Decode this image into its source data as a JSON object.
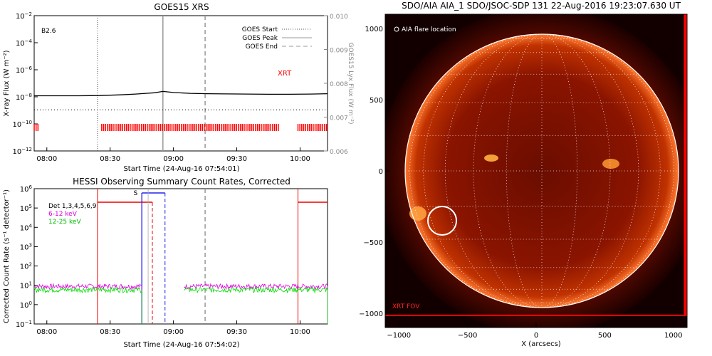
{
  "chart_data": [
    {
      "type": "line",
      "title": "GOES15 XRS",
      "xlabel": "Start Time (24-Aug-16 07:54:01)",
      "ylabel_left": "X-ray Flux (W m⁻²)",
      "ylabel_right": "GOES15 Lyx Flux (W m⁻²)",
      "x_ticks": [
        "08:00",
        "08:30",
        "09:00",
        "09:30",
        "10:00"
      ],
      "x_tick_minutes": [
        480,
        510,
        540,
        570,
        600
      ],
      "xlim_minutes": [
        474,
        613
      ],
      "y_scale": "log",
      "ylim": [
        1e-12,
        0.01
      ],
      "y_tick_exponents": [
        -12,
        -10,
        -8,
        -6,
        -4,
        -2
      ],
      "y2lim": [
        0.006,
        0.01
      ],
      "y2_ticks": [
        "0.006",
        "0.007",
        "0.008",
        "0.009",
        "0.010"
      ],
      "flare_class_label": "B2.6",
      "annotation": "XRT",
      "legend": [
        {
          "label": "GOES Start",
          "style": "dotted"
        },
        {
          "label": "GOES Peak",
          "style": "solid"
        },
        {
          "label": "GOES End",
          "style": "dashed"
        }
      ],
      "event_lines_minutes": {
        "start": 504,
        "peak": 535,
        "end": 555
      },
      "series": [
        {
          "color": "#000000",
          "x": [
            474,
            485,
            495,
            505,
            515,
            522,
            527,
            531,
            535,
            540,
            548,
            556,
            565,
            575,
            585,
            595,
            605,
            613
          ],
          "y": [
            1.2e-08,
            1.2e-08,
            1.2e-08,
            1.25e-08,
            1.4e-08,
            1.6e-08,
            1.8e-08,
            2e-08,
            2.5e-08,
            2.1e-08,
            1.8e-08,
            1.7e-08,
            1.65e-08,
            1.6e-08,
            1.55e-08,
            1.55e-08,
            1.6e-08,
            1.7e-08
          ]
        },
        {
          "color": "#000000",
          "x": [
            474,
            613
          ],
          "y": [
            1.1e-09,
            1.1e-09
          ]
        }
      ],
      "xrt_coverage_minutes": [
        [
          474,
          476
        ],
        [
          506,
          590
        ],
        [
          599,
          613
        ]
      ],
      "xrt_color": "#ff0000"
    },
    {
      "type": "line",
      "title": "HESSI Observing Summary Count Rates, Corrected",
      "xlabel": "Start Time (24-Aug-16 07:54:02)",
      "ylabel": "Corrected Count Rate (s⁻¹ detector⁻¹)",
      "x_ticks": [
        "08:00",
        "08:30",
        "09:00",
        "09:30",
        "10:00"
      ],
      "x_tick_minutes": [
        480,
        510,
        540,
        570,
        600
      ],
      "xlim_minutes": [
        474,
        613
      ],
      "y_scale": "log",
      "ylim": [
        0.1,
        1000000.0
      ],
      "y_tick_exponents": [
        -1,
        0,
        1,
        2,
        3,
        4,
        5,
        6
      ],
      "legend": [
        {
          "label": "Det 1,3,4,5,6,9",
          "color": "#000000"
        },
        {
          "label": "6-12 keV",
          "color": "#dd00dd"
        },
        {
          "label": "12-25 keV",
          "color": "#00dd00"
        }
      ],
      "marker_label": "S",
      "series": [
        {
          "name": "6-12 keV",
          "color": "#dd00dd",
          "segments": [
            [
              474,
              525,
              9
            ],
            [
              545,
              613,
              9
            ]
          ]
        },
        {
          "name": "12-25 keV",
          "color": "#00dd00",
          "segments": [
            [
              474,
              525,
              6
            ],
            [
              545,
              613,
              6
            ]
          ]
        }
      ]
    },
    {
      "type": "scatter",
      "title": "SDO/AIA AIA_1 SDO/JSOC-SDP 131 22-Aug-2016 19:23:07.630 UT",
      "xlabel": "X (arcsecs)",
      "x_ticks": [
        "−1000",
        "−500",
        "0",
        "500",
        "1000"
      ],
      "y_ticks": [
        "1000",
        "500",
        "0",
        "−500",
        "−1000"
      ],
      "xlim": [
        -1100,
        1100
      ],
      "ylim": [
        -1100,
        1100
      ],
      "legend_text": "AIA flare location",
      "fov_label": "XRT FOV",
      "flare_location": {
        "x": -700,
        "y": -350
      }
    }
  ]
}
